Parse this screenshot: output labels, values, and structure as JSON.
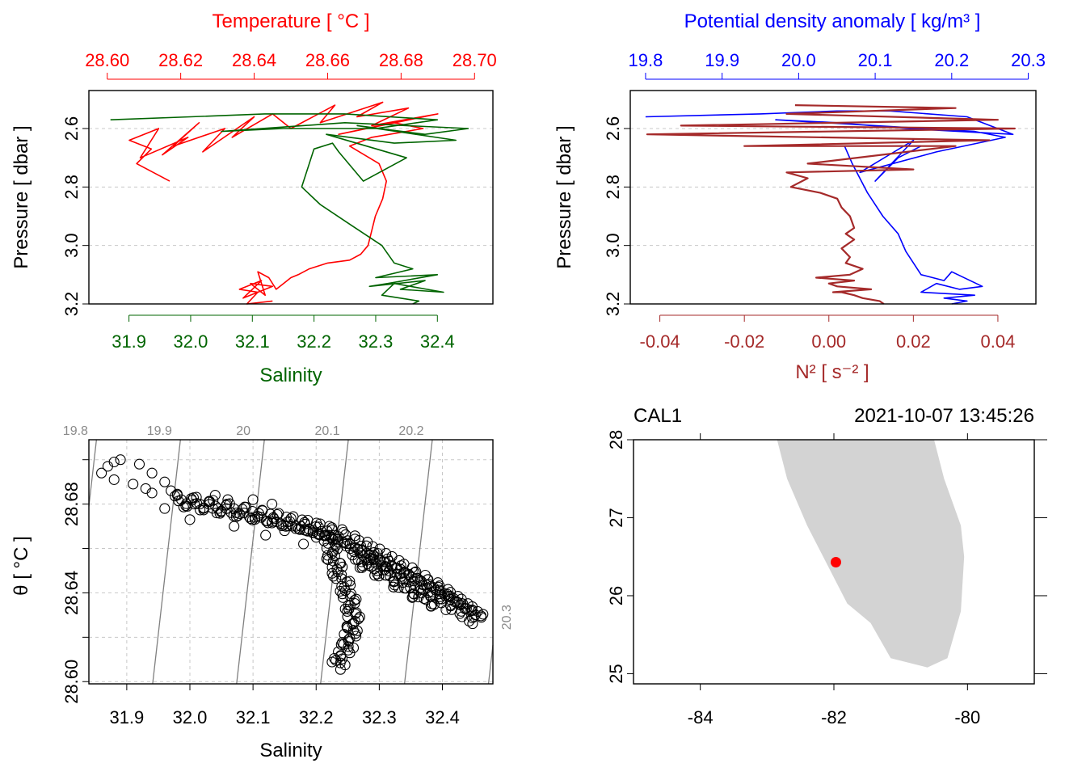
{
  "colors": {
    "temperature": "#ff0000",
    "salinity": "#006400",
    "density": "#0000ff",
    "n2": "#a52a2a",
    "grid": "#c8c8c8",
    "isopycnal": "#808080",
    "land": "#d3d3d3",
    "station": "#ff0000",
    "axis": "#000000"
  },
  "chart_data": [
    {
      "type": "line",
      "panel": "profile-TS",
      "top_axis": {
        "label": "Temperature [ °C ]",
        "ticks": [
          "28.60",
          "28.62",
          "28.64",
          "28.66",
          "28.68",
          "28.70"
        ],
        "range": [
          28.595,
          28.705
        ]
      },
      "bottom_axis": {
        "label": "Salinity",
        "ticks": [
          "31.9",
          "32.0",
          "32.1",
          "32.2",
          "32.3",
          "32.4"
        ],
        "range": [
          31.835,
          32.49
        ]
      },
      "y_axis": {
        "label": "Pressure [ dbar ]",
        "ticks": [
          "2.6",
          "2.8",
          "3.0",
          "3.2"
        ],
        "range": [
          3.2,
          2.47
        ],
        "inverted": true
      },
      "series": [
        {
          "name": "Temperature",
          "x_unit": "degC",
          "x": [
            28.617,
            28.608,
            28.612,
            28.606,
            28.614,
            28.609,
            28.622,
            28.615,
            28.625,
            28.618,
            28.632,
            28.626,
            28.64,
            28.634,
            28.645,
            28.65,
            28.662,
            28.658,
            28.675,
            28.668,
            28.682,
            28.672,
            28.69,
            28.663,
            28.678,
            28.686,
            28.672,
            28.666,
            28.674,
            28.676,
            28.675,
            28.673,
            28.672,
            28.671,
            28.669,
            28.666,
            28.66,
            28.655,
            28.652,
            28.65,
            28.648,
            28.646,
            28.644,
            28.641,
            28.643,
            28.639,
            28.645,
            28.637,
            28.642,
            28.636,
            28.641,
            28.638,
            28.645
          ],
          "y": [
            2.78,
            2.72,
            2.67,
            2.64,
            2.6,
            2.7,
            2.63,
            2.69,
            2.58,
            2.66,
            2.6,
            2.68,
            2.56,
            2.63,
            2.55,
            2.6,
            2.52,
            2.58,
            2.51,
            2.56,
            2.53,
            2.59,
            2.55,
            2.62,
            2.58,
            2.6,
            2.63,
            2.66,
            2.72,
            2.78,
            2.84,
            2.9,
            2.95,
            3.0,
            3.03,
            3.05,
            3.06,
            3.08,
            3.1,
            3.11,
            3.13,
            3.15,
            3.11,
            3.09,
            3.17,
            3.13,
            3.14,
            3.18,
            3.12,
            3.15,
            3.16,
            3.2,
            3.19
          ]
        },
        {
          "name": "Salinity",
          "x_unit": "PSU",
          "x": [
            31.87,
            32.0,
            32.12,
            32.25,
            32.4,
            32.3,
            32.15,
            32.05,
            32.25,
            32.45,
            32.38,
            32.27,
            32.43,
            32.33,
            32.22,
            32.35,
            32.28,
            32.24,
            32.23,
            32.2,
            32.18,
            32.21,
            32.26,
            32.31,
            32.33,
            32.36,
            32.3,
            32.4,
            32.32,
            32.29,
            32.38,
            32.34,
            32.41,
            32.33,
            32.31,
            32.37,
            32.36
          ],
          "y": [
            2.57,
            2.56,
            2.55,
            2.55,
            2.57,
            2.6,
            2.6,
            2.61,
            2.58,
            2.6,
            2.62,
            2.59,
            2.64,
            2.65,
            2.62,
            2.7,
            2.78,
            2.68,
            2.65,
            2.67,
            2.8,
            2.86,
            2.93,
            3.0,
            3.06,
            3.08,
            3.11,
            3.1,
            3.13,
            3.14,
            3.12,
            3.15,
            3.16,
            3.13,
            3.17,
            3.19,
            3.2
          ]
        }
      ]
    },
    {
      "type": "line",
      "panel": "profile-density-N2",
      "top_axis": {
        "label": "Potential density anomaly [ kg/m³ ]",
        "ticks": [
          "19.8",
          "19.9",
          "20.0",
          "20.1",
          "20.2",
          "20.3"
        ],
        "range": [
          19.78,
          20.31
        ]
      },
      "bottom_axis": {
        "label": "N² [ s⁻² ]",
        "ticks": [
          "-0.04",
          "-0.02",
          "0.00",
          "0.02",
          "0.04"
        ],
        "range": [
          -0.047,
          0.049
        ]
      },
      "y_axis": {
        "label": "Pressure [ dbar ]",
        "ticks": [
          "2.6",
          "2.8",
          "3.0",
          "3.2"
        ],
        "range": [
          3.2,
          2.47
        ],
        "inverted": true
      },
      "series": [
        {
          "name": "Potential density anomaly",
          "x": [
            19.8,
            19.95,
            20.05,
            20.12,
            20.22,
            20.28,
            20.14,
            20.05,
            19.97,
            20.1,
            20.23,
            20.27,
            20.18,
            20.08,
            20.15,
            20.1,
            20.13,
            20.16,
            20.06,
            20.07,
            20.09,
            20.11,
            20.13,
            20.14,
            20.15,
            20.16,
            20.19,
            20.2,
            20.24,
            20.21,
            20.18,
            20.16,
            20.23,
            20.19,
            20.22,
            20.2
          ],
          "y": [
            2.56,
            2.55,
            2.54,
            2.54,
            2.56,
            2.62,
            2.6,
            2.58,
            2.57,
            2.59,
            2.61,
            2.63,
            2.68,
            2.75,
            2.64,
            2.78,
            2.7,
            2.66,
            2.66,
            2.72,
            2.82,
            2.9,
            2.96,
            3.02,
            3.06,
            3.1,
            3.12,
            3.09,
            3.14,
            3.15,
            3.13,
            3.16,
            3.17,
            3.18,
            3.19,
            3.2
          ]
        },
        {
          "name": "N2",
          "x": [
            -0.008,
            0.03,
            -0.01,
            0.04,
            -0.035,
            0.044,
            -0.043,
            0.038,
            -0.02,
            0.03,
            -0.005,
            0.02,
            -0.01,
            -0.005,
            -0.009,
            -0.002,
            0.002,
            0.003,
            0.005,
            0.006,
            0.004,
            0.006,
            0.003,
            0.005,
            0.004,
            0.008,
            0.005,
            -0.003,
            0.006,
            0.0,
            0.002,
            0.01,
            0.001,
            0.003,
            0.006,
            0.008,
            0.012,
            0.013
          ],
          "y": [
            2.52,
            2.53,
            2.55,
            2.57,
            2.59,
            2.6,
            2.62,
            2.64,
            2.66,
            2.66,
            2.72,
            2.74,
            2.75,
            2.77,
            2.8,
            2.82,
            2.84,
            2.87,
            2.9,
            2.94,
            2.96,
            2.98,
            3.01,
            3.04,
            3.06,
            3.08,
            3.1,
            3.11,
            3.12,
            3.13,
            3.14,
            3.15,
            3.16,
            3.16,
            3.17,
            3.18,
            3.19,
            3.2
          ]
        }
      ]
    },
    {
      "type": "scatter",
      "panel": "TS-diagram",
      "xlabel": "Salinity",
      "ylabel": "θ [ °C ]",
      "xticks": [
        "31.9",
        "32.0",
        "32.1",
        "32.2",
        "32.3",
        "32.4"
      ],
      "yticks": [
        "28.60",
        "28.64",
        "28.68"
      ],
      "xlim": [
        31.84,
        32.48
      ],
      "ylim": [
        28.599,
        28.709
      ],
      "isopycnals": [
        {
          "label": "19.8",
          "s_bottom": 31.808,
          "s_top": 31.852
        },
        {
          "label": "19.9",
          "s_bottom": 31.941,
          "s_top": 31.985
        },
        {
          "label": "20",
          "s_bottom": 32.074,
          "s_top": 32.118
        },
        {
          "label": "20.1",
          "s_bottom": 32.207,
          "s_top": 32.251
        },
        {
          "label": "20.2",
          "s_bottom": 32.34,
          "s_top": 32.384
        },
        {
          "label": "20.3",
          "s_bottom": 32.473,
          "s_top": 32.517
        }
      ],
      "points_sparse": [
        [
          31.86,
          28.694
        ],
        [
          31.87,
          28.697
        ],
        [
          31.88,
          28.699
        ],
        [
          31.89,
          28.7
        ],
        [
          31.88,
          28.691
        ],
        [
          31.92,
          28.698
        ],
        [
          31.94,
          28.694
        ],
        [
          31.96,
          28.69
        ],
        [
          31.91,
          28.689
        ],
        [
          31.93,
          28.687
        ],
        [
          31.94,
          28.685
        ],
        [
          31.96,
          28.678
        ],
        [
          31.97,
          28.686
        ],
        [
          31.98,
          28.684
        ],
        [
          32.0,
          28.673
        ],
        [
          32.03,
          28.681
        ],
        [
          32.06,
          28.682
        ],
        [
          32.04,
          28.684
        ],
        [
          32.1,
          28.682
        ],
        [
          32.13,
          28.68
        ],
        [
          32.07,
          28.67
        ],
        [
          32.15,
          28.668
        ],
        [
          32.12,
          28.666
        ],
        [
          32.2,
          28.665
        ],
        [
          32.18,
          28.662
        ]
      ],
      "band_main": {
        "s": [
          31.98,
          32.05,
          32.12,
          32.18,
          32.23,
          32.28,
          32.33,
          32.38,
          32.42,
          32.46
        ],
        "t": [
          28.682,
          28.678,
          28.674,
          28.67,
          28.666,
          28.659,
          28.651,
          28.643,
          28.636,
          28.628
        ]
      },
      "band_branch": {
        "s": [
          32.22,
          32.23,
          32.25,
          32.26,
          32.25,
          32.23
        ],
        "t": [
          28.664,
          28.652,
          28.64,
          28.628,
          28.617,
          28.606
        ]
      },
      "band_lower": {
        "s": [
          32.26,
          32.3,
          32.35,
          32.4
        ],
        "t": [
          28.656,
          28.65,
          28.641,
          28.634
        ]
      }
    },
    {
      "type": "map",
      "panel": "station-map",
      "station": "CAL1",
      "datetime": "2021-10-07 13:45:26",
      "xticks": [
        "-84",
        "-82",
        "-80"
      ],
      "yticks": [
        "25",
        "26",
        "27",
        "28"
      ],
      "xlim": [
        -85.0,
        -79.0
      ],
      "ylim": [
        24.87,
        28.0
      ],
      "station_lon": -81.97,
      "station_lat": 26.43,
      "coastline": {
        "lon": [
          -82.85,
          -82.7,
          -82.4,
          -82.1,
          -81.8,
          -81.45,
          -81.15,
          -80.6,
          -80.3,
          -80.1,
          -80.05,
          -80.1,
          -80.35,
          -80.5,
          -80.85
        ],
        "lat": [
          28.0,
          27.5,
          26.9,
          26.4,
          25.9,
          25.65,
          25.2,
          25.08,
          25.2,
          25.8,
          26.5,
          26.9,
          27.5,
          28.0,
          28.0
        ]
      }
    }
  ]
}
